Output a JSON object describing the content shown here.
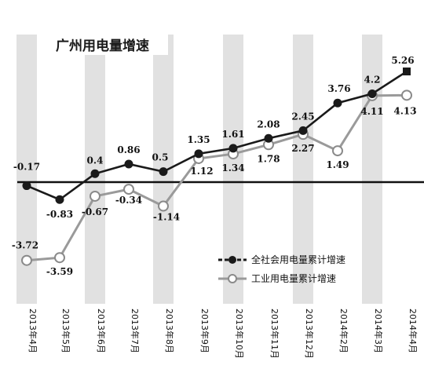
{
  "chart_data": {
    "type": "line",
    "title": "广州用电量增速",
    "categories": [
      "2013年4月",
      "2013年5月",
      "2013年6月",
      "2013年7月",
      "2013年8月",
      "2013年9月",
      "2013年10月",
      "2013年11月",
      "2013年12月",
      "2014年2月",
      "2014年3月",
      "2014年4月"
    ],
    "series": [
      {
        "name": "全社会用电量累计增速",
        "values": [
          -0.17,
          -0.83,
          0.4,
          0.86,
          0.5,
          1.35,
          1.61,
          2.08,
          2.45,
          3.76,
          4.2,
          5.26
        ],
        "labels": [
          "-0.17",
          "-0.83",
          "0.4",
          "0.86",
          "0.5",
          "1.35",
          "1.61",
          "2.08",
          "2.45",
          "3.76",
          "4.2",
          "5.26"
        ],
        "color": "#1a1a1a",
        "marker": "filled"
      },
      {
        "name": "工业用电量累计增速",
        "values": [
          -3.72,
          -3.59,
          -0.67,
          -0.34,
          -1.14,
          1.12,
          1.34,
          1.78,
          2.27,
          1.49,
          4.11,
          4.13
        ],
        "labels": [
          "-3.72",
          "-3.59",
          "-0.67",
          "-0.34",
          "-1.14",
          "1.12",
          "1.34",
          "1.78",
          "2.27",
          "1.49",
          "4.11",
          "4.13"
        ],
        "color": "#9a9a9a",
        "marker": "hollow"
      }
    ],
    "grid": "alternating vertical bands",
    "legend": "bottom-right"
  }
}
